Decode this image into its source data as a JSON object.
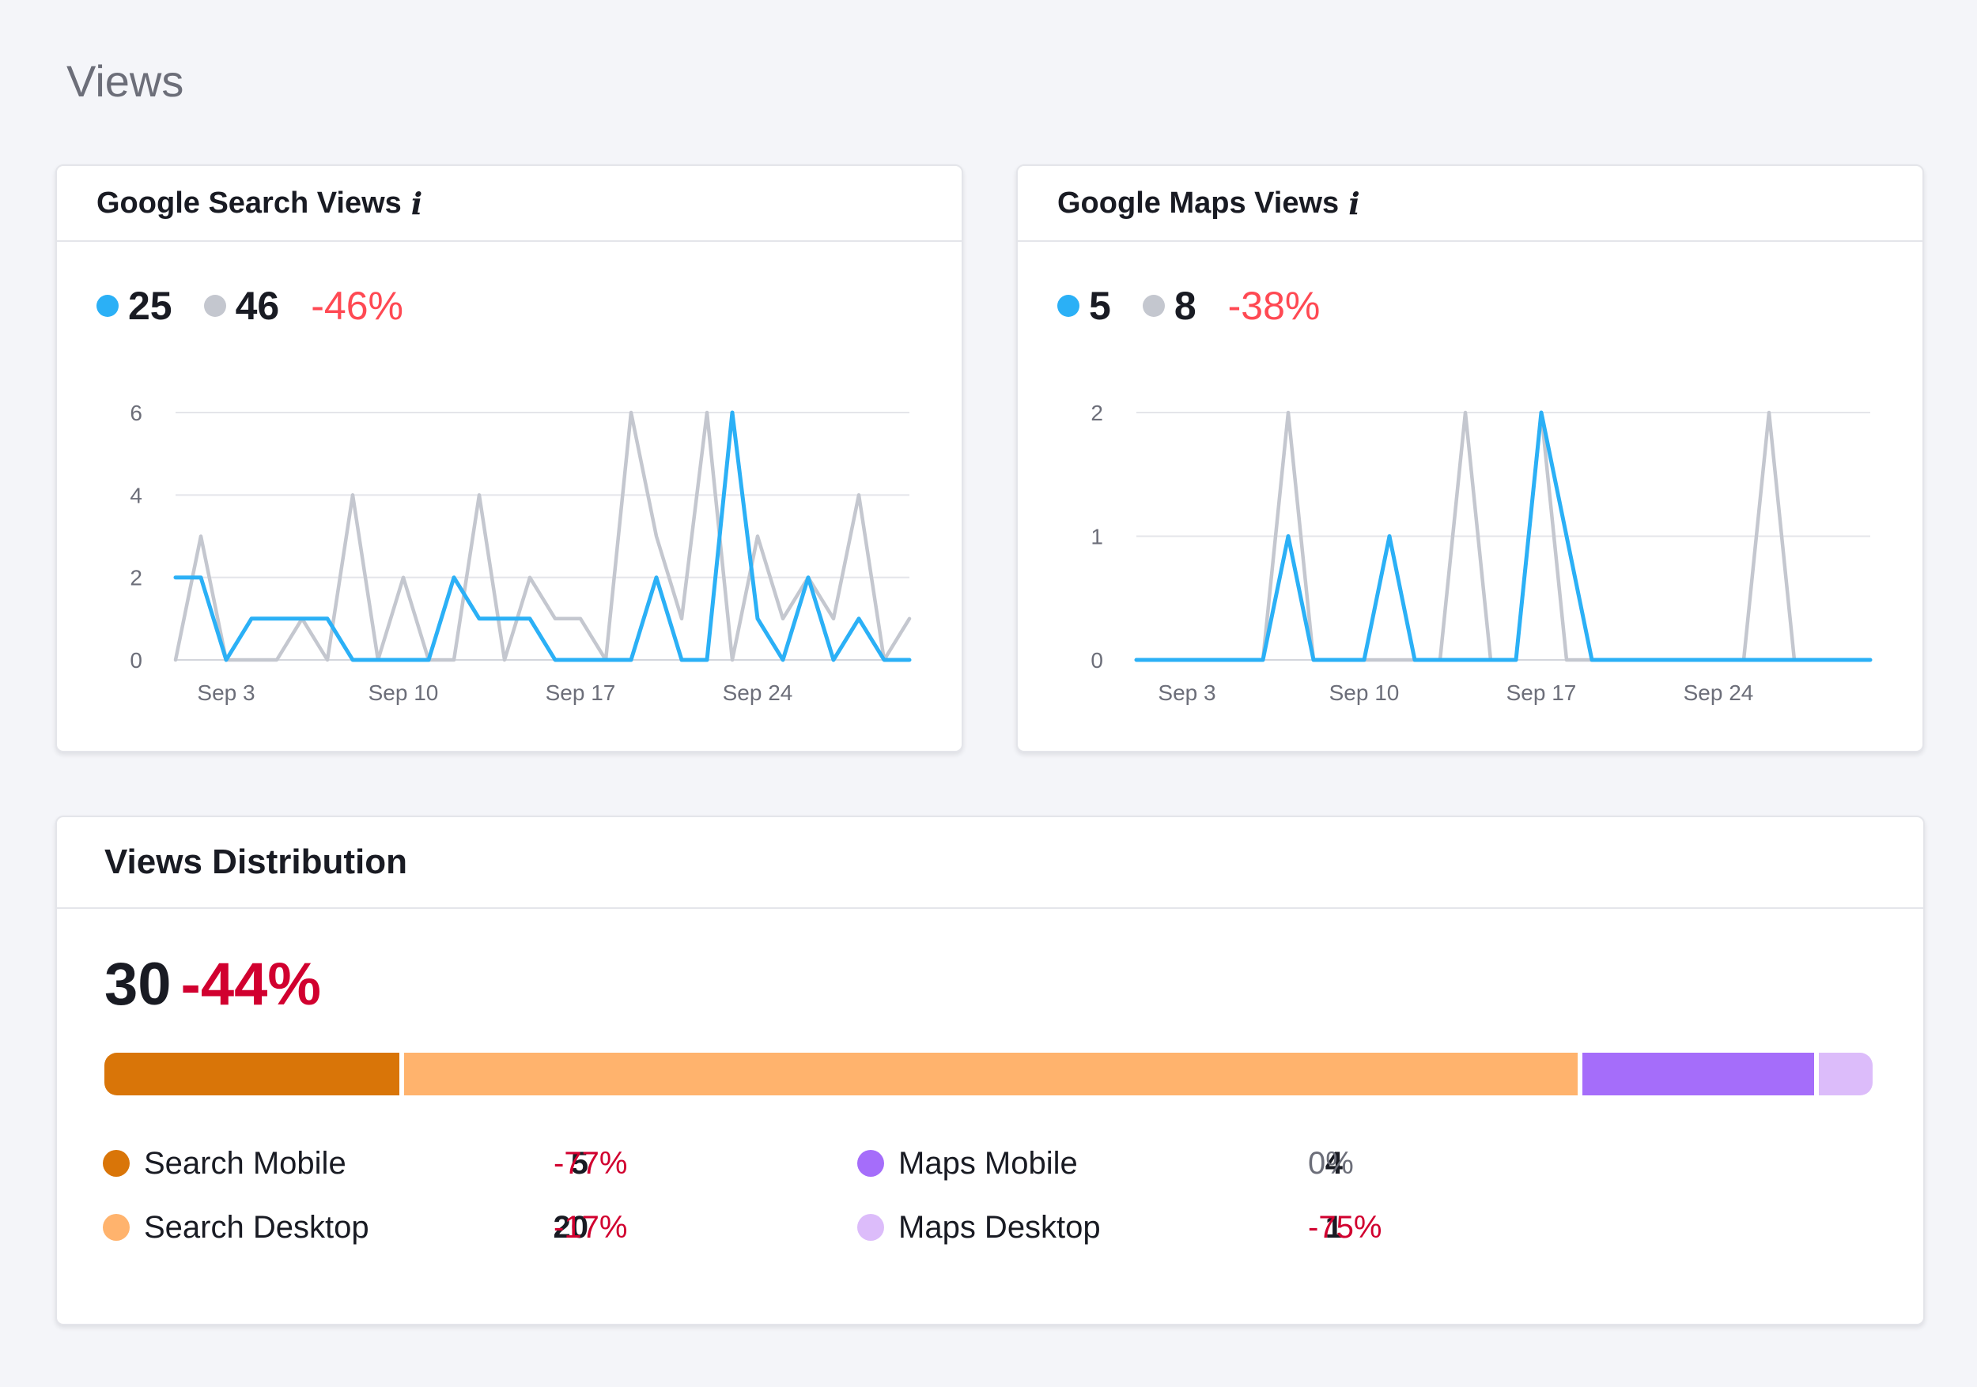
{
  "page": {
    "title": "Views"
  },
  "colors": {
    "current": "#2bb0f6",
    "previous": "#c4c7cf",
    "negative": "#ff4953",
    "negative_dark": "#d1002f",
    "neutral": "#6c6e79",
    "search_mobile": "#d97508",
    "search_desktop": "#ffb36d",
    "maps_mobile": "#a56dfa",
    "maps_desktop": "#dcbcfa"
  },
  "search_views": {
    "title": "Google Search Views",
    "info_icon": "info-icon",
    "current_total": "25",
    "previous_total": "46",
    "delta": "-46%"
  },
  "maps_views": {
    "title": "Google Maps Views",
    "info_icon": "info-icon",
    "current_total": "5",
    "previous_total": "8",
    "delta": "-38%"
  },
  "distribution": {
    "title": "Views Distribution",
    "total": "30",
    "delta": "-44%",
    "items": [
      {
        "label": "Search Mobile",
        "value": "5",
        "delta": "-77%",
        "share": 0.1667
      },
      {
        "label": "Search Desktop",
        "value": "20",
        "delta": "-17%",
        "share": 0.6667
      },
      {
        "label": "Maps Mobile",
        "value": "4",
        "delta": "0%",
        "share": 0.1333
      },
      {
        "label": "Maps Desktop",
        "value": "1",
        "delta": "-75%",
        "share": 0.0333
      }
    ]
  },
  "chart_data": [
    {
      "type": "line",
      "title": "Google Search Views",
      "x": [
        1,
        2,
        3,
        4,
        5,
        6,
        7,
        8,
        9,
        10,
        11,
        12,
        13,
        14,
        15,
        16,
        17,
        18,
        19,
        20,
        21,
        22,
        23,
        24,
        25,
        26,
        27,
        28,
        29,
        30
      ],
      "xticks": [
        {
          "x": 3,
          "label": "Sep 3"
        },
        {
          "x": 10,
          "label": "Sep 10"
        },
        {
          "x": 17,
          "label": "Sep 17"
        },
        {
          "x": 24,
          "label": "Sep 24"
        }
      ],
      "ylim": [
        0,
        6
      ],
      "yticks": [
        0,
        2,
        4,
        6
      ],
      "grid": true,
      "series": [
        {
          "values": [
            0,
            3,
            0,
            0,
            0,
            1,
            0,
            4,
            0,
            2,
            0,
            0,
            4,
            0,
            2,
            1,
            1,
            0,
            6,
            3,
            1,
            6,
            0,
            3,
            1,
            2,
            1,
            4,
            0,
            1
          ]
        },
        {
          "values": [
            2,
            2,
            0,
            1,
            1,
            1,
            1,
            0,
            0,
            0,
            0,
            2,
            1,
            1,
            1,
            0,
            0,
            0,
            0,
            2,
            0,
            0,
            6,
            1,
            0,
            2,
            0,
            1,
            0,
            0
          ]
        }
      ]
    },
    {
      "type": "line",
      "title": "Google Maps Views",
      "x": [
        1,
        2,
        3,
        4,
        5,
        6,
        7,
        8,
        9,
        10,
        11,
        12,
        13,
        14,
        15,
        16,
        17,
        18,
        19,
        20,
        21,
        22,
        23,
        24,
        25,
        26,
        27,
        28,
        29,
        30
      ],
      "xticks": [
        {
          "x": 3,
          "label": "Sep 3"
        },
        {
          "x": 10,
          "label": "Sep 10"
        },
        {
          "x": 17,
          "label": "Sep 17"
        },
        {
          "x": 24,
          "label": "Sep 24"
        }
      ],
      "ylim": [
        0,
        2
      ],
      "yticks": [
        0,
        1,
        2
      ],
      "grid": true,
      "series": [
        {
          "values": [
            0,
            0,
            0,
            0,
            0,
            0,
            2,
            0,
            0,
            0,
            0,
            0,
            0,
            2,
            0,
            0,
            2,
            0,
            0,
            0,
            0,
            0,
            0,
            0,
            0,
            2,
            0,
            0,
            0,
            0
          ]
        },
        {
          "values": [
            0,
            0,
            0,
            0,
            0,
            0,
            1,
            0,
            0,
            0,
            1,
            0,
            0,
            0,
            0,
            0,
            2,
            1,
            0,
            0,
            0,
            0,
            0,
            0,
            0,
            0,
            0,
            0,
            0,
            0
          ]
        }
      ]
    }
  ]
}
